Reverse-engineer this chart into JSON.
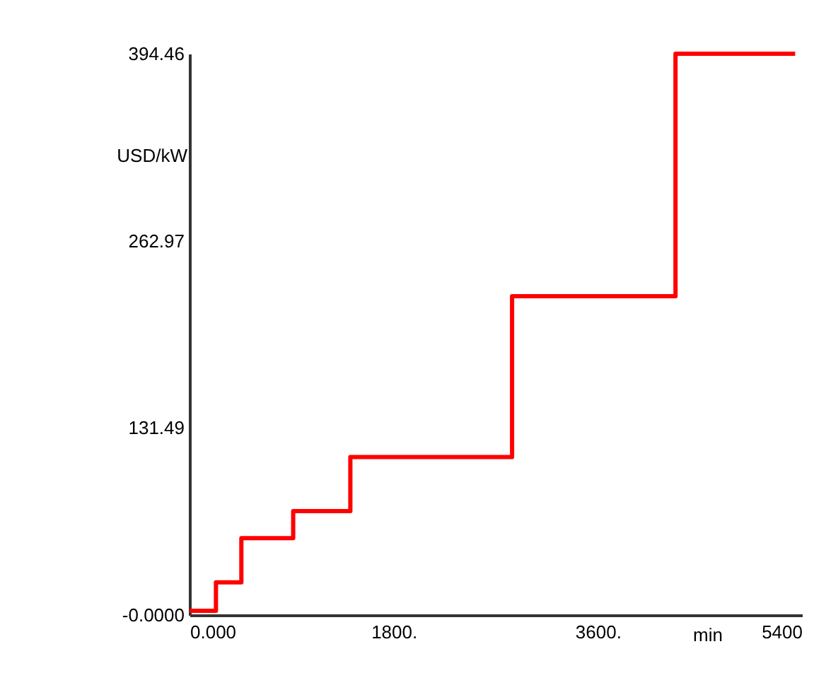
{
  "chart_data": {
    "type": "step",
    "xlabel": "min",
    "ylabel": "USD/kW",
    "x": [
      0,
      233,
      457,
      914,
      1418,
      2844,
      4285,
      5340
    ],
    "series": [
      {
        "color": "#ff0000",
        "values": [
          3,
          23,
          54,
          73,
          111,
          224,
          394.46,
          394.46
        ]
      }
    ],
    "xlim": [
      0,
      5400
    ],
    "xticks": [
      {
        "value": 0,
        "label": "0.000"
      },
      {
        "value": 1800,
        "label": "1800."
      },
      {
        "value": 3600,
        "label": "3600."
      },
      5400
    ],
    "ylim": [
      0,
      394.46
    ],
    "yticks": [
      {
        "value": 0,
        "label": "-0.0000"
      },
      131.49,
      262.97,
      394.46
    ],
    "grid": false,
    "marker": "none",
    "line_style": "solid"
  }
}
